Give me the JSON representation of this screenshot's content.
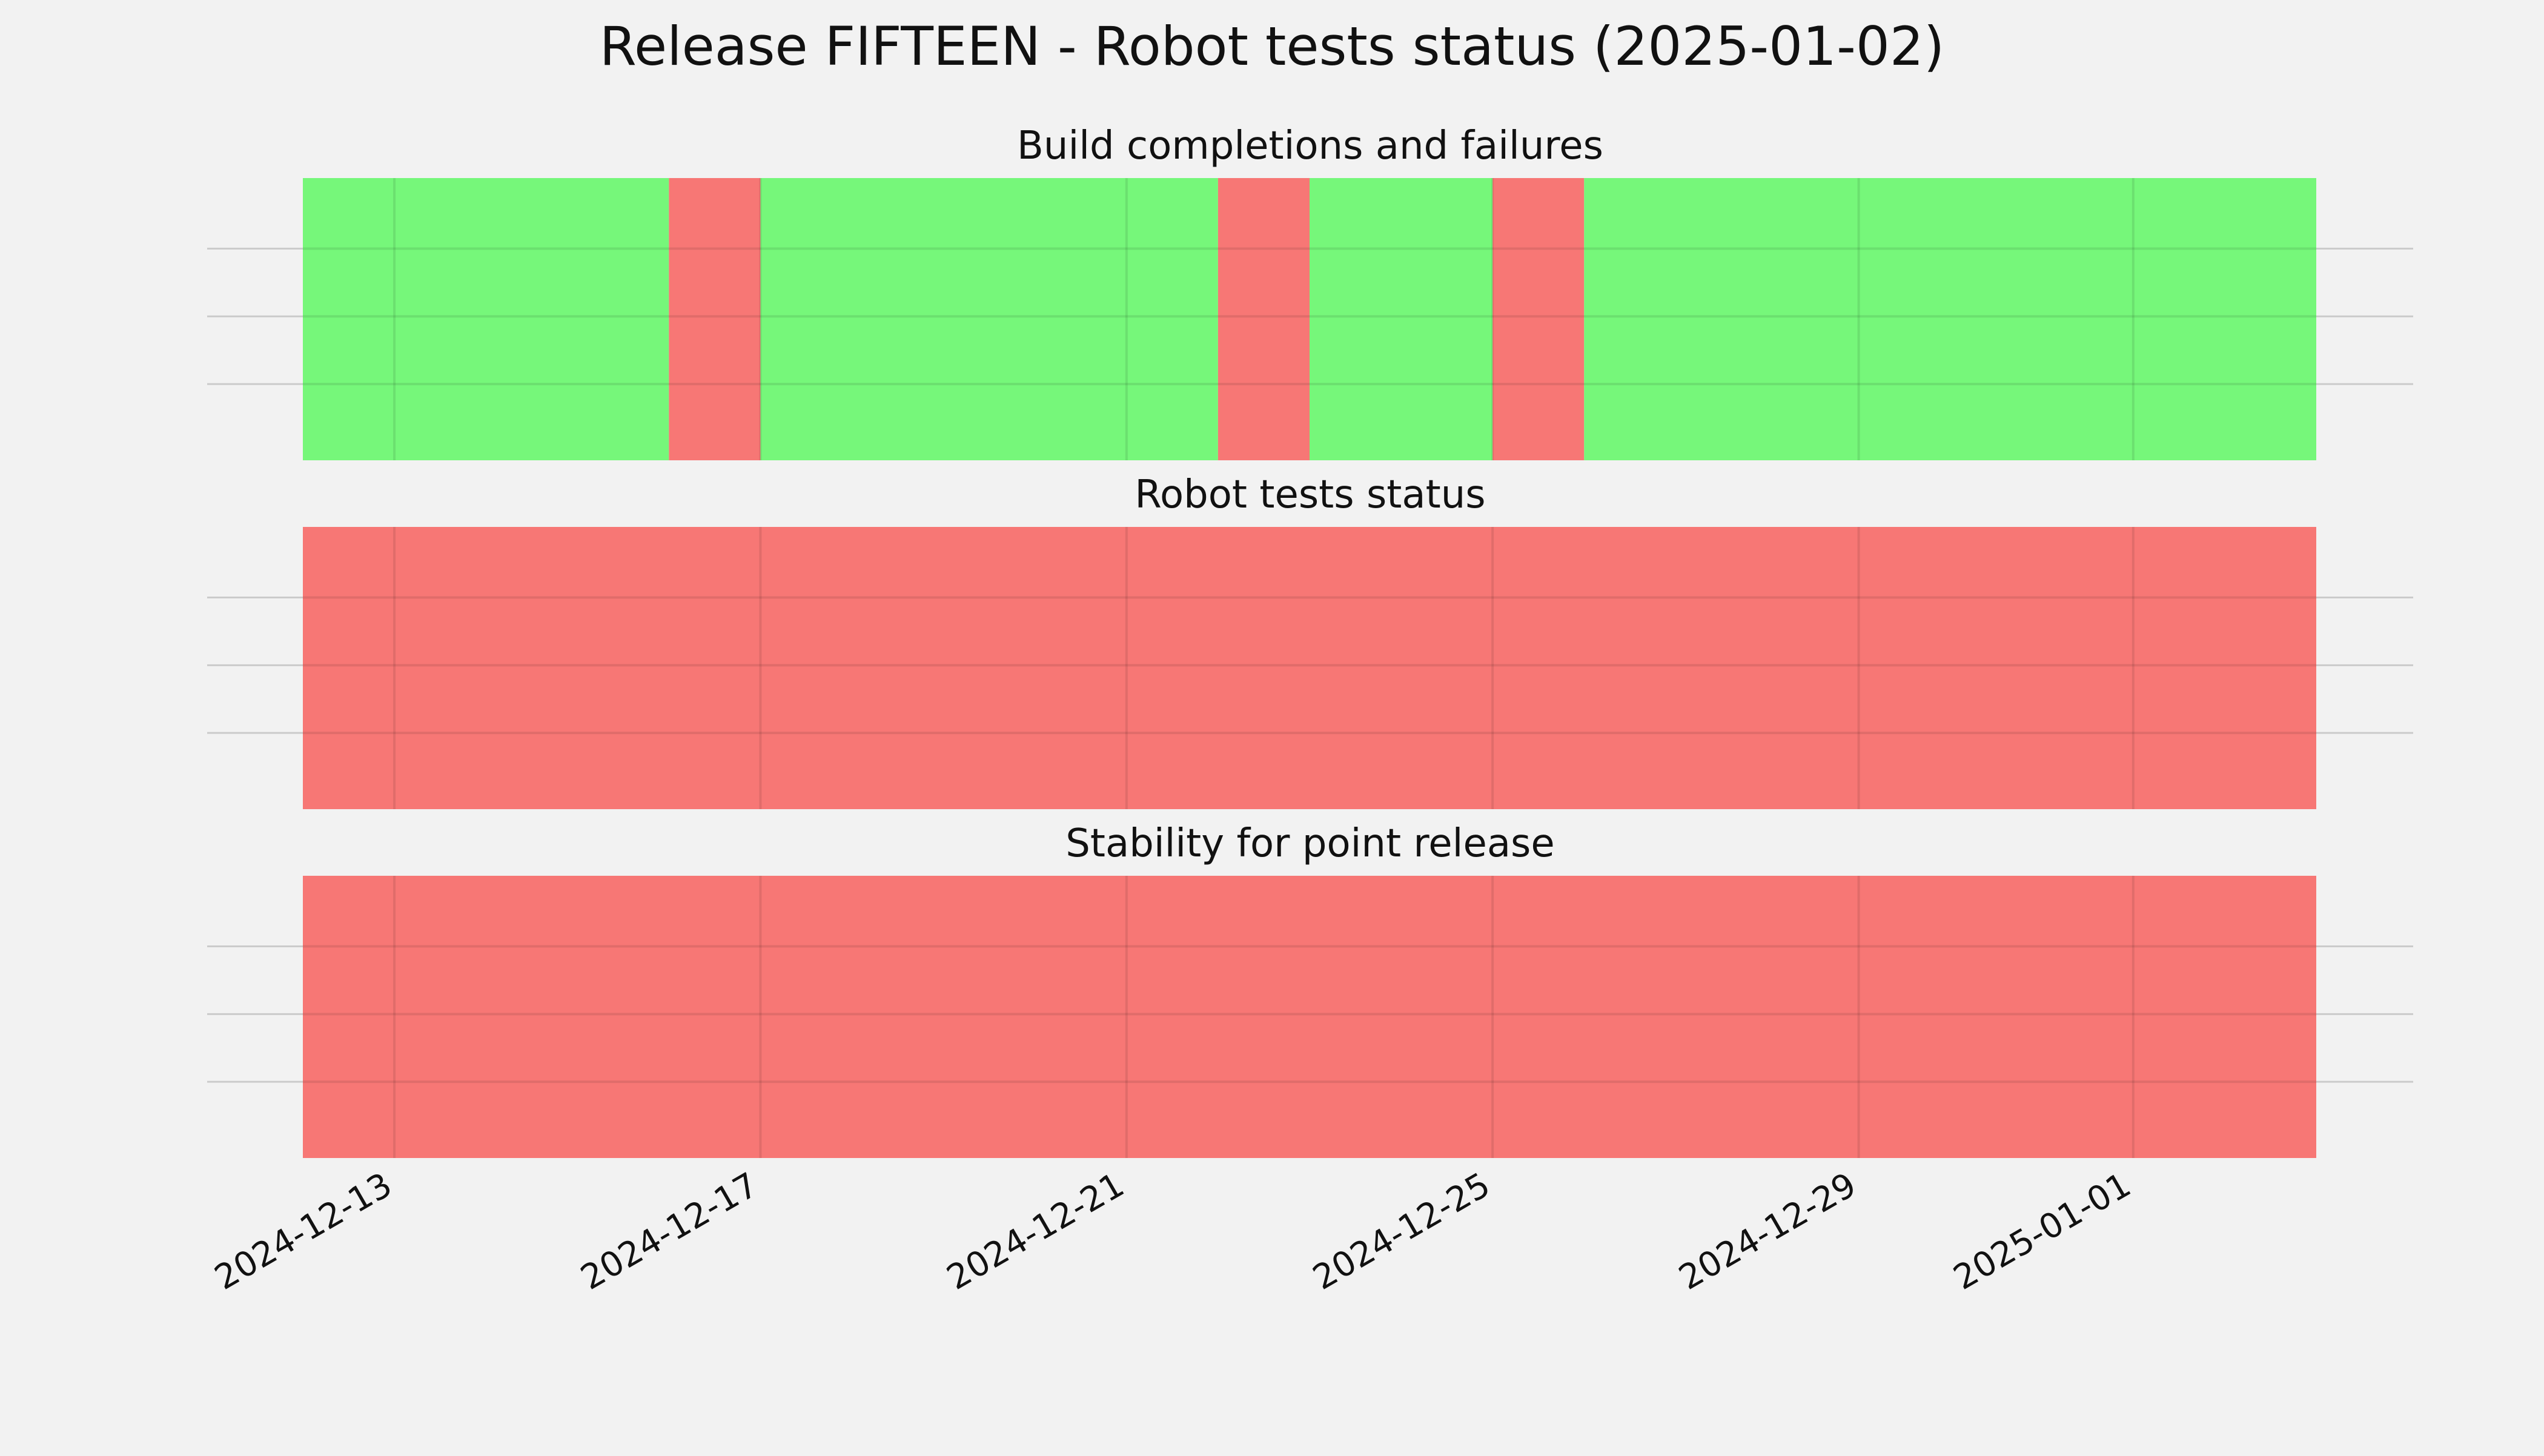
{
  "title": "Release FIFTEEN - Robot tests status (2025-01-02)",
  "colors": {
    "success": "#76f77a",
    "failure": "#f77775",
    "background": "#f2f2f2",
    "grid": "#cbcbcb"
  },
  "chart_data": {
    "type": "timeline",
    "x_axis": {
      "range": [
        "2024-12-12",
        "2025-01-03"
      ],
      "tick_labels": [
        "2024-12-13",
        "2024-12-17",
        "2024-12-21",
        "2024-12-25",
        "2024-12-29",
        "2025-01-01"
      ],
      "tick_label_rotation": "30deg"
    },
    "y_axis": {
      "tick_labels": [],
      "gridlines": 3
    },
    "grid": true,
    "panels": [
      {
        "title": "Build completions and failures",
        "segments": [
          {
            "start": "2024-12-12",
            "end": "2024-12-16",
            "status": "success"
          },
          {
            "start": "2024-12-16",
            "end": "2024-12-17",
            "status": "failure"
          },
          {
            "start": "2024-12-17",
            "end": "2024-12-22",
            "status": "success"
          },
          {
            "start": "2024-12-22",
            "end": "2024-12-23",
            "status": "failure"
          },
          {
            "start": "2024-12-23",
            "end": "2024-12-25",
            "status": "success"
          },
          {
            "start": "2024-12-25",
            "end": "2024-12-26",
            "status": "failure"
          },
          {
            "start": "2024-12-26",
            "end": "2025-01-03",
            "status": "success"
          }
        ]
      },
      {
        "title": "Robot tests status",
        "segments": [
          {
            "start": "2024-12-12",
            "end": "2025-01-03",
            "status": "failure"
          }
        ]
      },
      {
        "title": "Stability for point release",
        "segments": [
          {
            "start": "2024-12-12",
            "end": "2025-01-03",
            "status": "failure"
          }
        ]
      }
    ]
  }
}
